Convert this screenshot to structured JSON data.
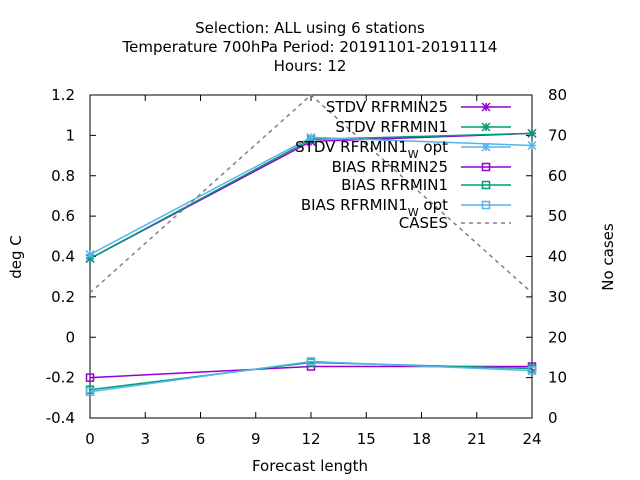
{
  "chart_data": {
    "type": "line",
    "title_lines": [
      "Selection: ALL using     6 stations",
      "Temperature 700hPa   Period: 20191101-20191114",
      "Hours:  12"
    ],
    "xlabel": "Forecast length",
    "ylabel": "deg C",
    "y2label": "No cases",
    "x": [
      0,
      12,
      24
    ],
    "xticks": [
      0,
      3,
      6,
      9,
      12,
      15,
      18,
      21,
      24
    ],
    "xlim": [
      0,
      24
    ],
    "ylim": [
      -0.4,
      1.2
    ],
    "yticks": [
      -0.4,
      -0.2,
      0,
      0.2,
      0.4,
      0.6,
      0.8,
      1,
      1.2
    ],
    "ytick_labels": [
      "-0.4",
      "-0.2",
      "0",
      "0.2",
      "0.4",
      "0.6",
      "0.8",
      "1",
      "1.2"
    ],
    "y2lim": [
      0,
      80
    ],
    "y2ticks": [
      0,
      10,
      20,
      30,
      40,
      50,
      60,
      70,
      80
    ],
    "grid": false,
    "legend_position": "top-right",
    "series": [
      {
        "name": "STDV RFRMIN25",
        "name_main": "STDV RFRMIN25",
        "name_sub": "",
        "name_tail": "",
        "axis": "y",
        "color": "#9400d3",
        "marker": "x",
        "dash": false,
        "values": [
          0.39,
          0.97,
          1.01
        ]
      },
      {
        "name": "STDV RFRMIN1",
        "name_main": "STDV RFRMIN1",
        "name_sub": "",
        "name_tail": "",
        "axis": "y",
        "color": "#009e73",
        "marker": "x",
        "dash": false,
        "values": [
          0.39,
          0.98,
          1.01
        ]
      },
      {
        "name": "STDV RFRMIN1_W opt",
        "name_main": "STDV RFRMIN1",
        "name_sub": "W",
        "name_tail": " opt",
        "axis": "y",
        "color": "#56b4e9",
        "marker": "x",
        "dash": false,
        "values": [
          0.41,
          0.99,
          0.95
        ]
      },
      {
        "name": "BIAS RFRMIN25",
        "name_main": "BIAS RFRMIN25",
        "name_sub": "",
        "name_tail": "",
        "axis": "y",
        "color": "#9400d3",
        "marker": "square",
        "dash": false,
        "values": [
          -0.2,
          -0.145,
          -0.145
        ]
      },
      {
        "name": "BIAS RFRMIN1",
        "name_main": "BIAS RFRMIN1",
        "name_sub": "",
        "name_tail": "",
        "axis": "y",
        "color": "#009e73",
        "marker": "square",
        "dash": false,
        "values": [
          -0.26,
          -0.125,
          -0.155
        ]
      },
      {
        "name": "BIAS RFRMIN1_W opt",
        "name_main": "BIAS RFRMIN1",
        "name_sub": "W",
        "name_tail": " opt",
        "axis": "y",
        "color": "#56b4e9",
        "marker": "square",
        "dash": false,
        "values": [
          -0.27,
          -0.12,
          -0.165
        ]
      },
      {
        "name": "CASES",
        "name_main": "CASES",
        "name_sub": "",
        "name_tail": "",
        "axis": "y2",
        "color": "#808080",
        "marker": "none",
        "dash": true,
        "values": [
          31,
          80,
          31
        ]
      }
    ]
  }
}
